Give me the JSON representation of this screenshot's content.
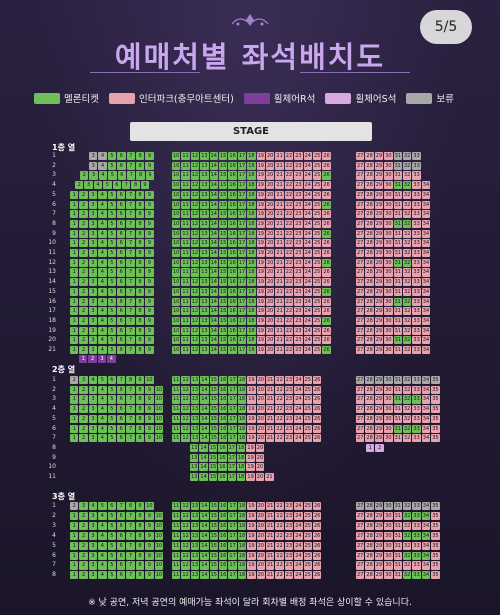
{
  "header": {
    "title": "예매처별 좌석배치도",
    "page_indicator": "5/5"
  },
  "legend": [
    {
      "label": "멜론티켓",
      "color": "#6dbf58"
    },
    {
      "label": "인터파크(충무아트센터)",
      "color": "#e7a2ad"
    },
    {
      "label": "휠체어R석",
      "color": "#7d3f9b"
    },
    {
      "label": "휠체어S석",
      "color": "#d8a9e0"
    },
    {
      "label": "보류",
      "color": "#a8a8a8"
    }
  ],
  "stage_label": "STAGE",
  "floors": {
    "floor1": "1층 열",
    "floor2": "2층 열",
    "floor3": "3층 열"
  },
  "footnote": "※ 낮 공연, 저녁 공연의 예매가능 좌석이 달라 회차별 배정 좌석은 상이할 수 있습니다."
}
